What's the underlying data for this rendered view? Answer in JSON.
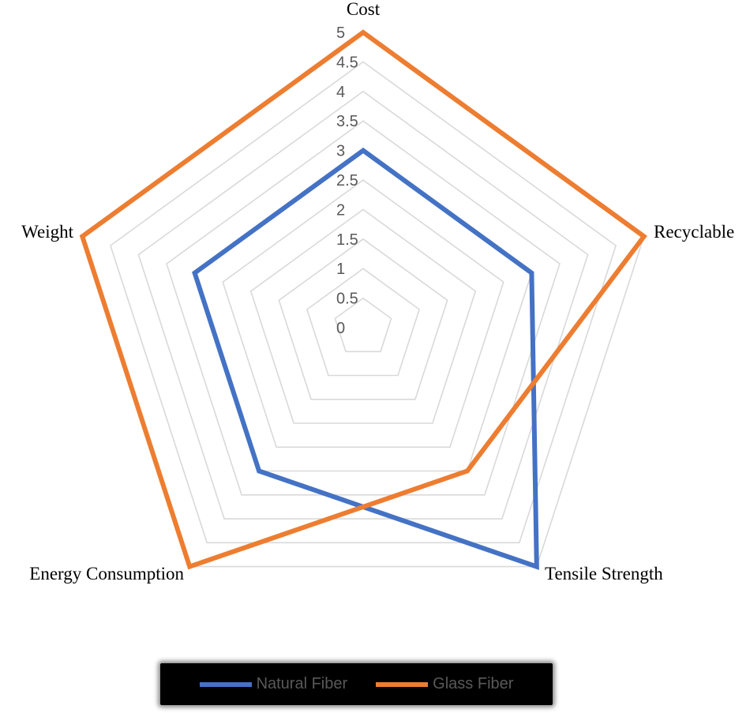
{
  "chart_data": {
    "type": "radar",
    "categories": [
      "Cost",
      "Recyclable",
      "Tensile Strength",
      "Energy Consumption",
      "Weight"
    ],
    "series": [
      {
        "name": "Natural Fiber",
        "values": [
          3,
          3,
          5,
          3,
          3
        ],
        "color": "#4472c4"
      },
      {
        "name": "Glass Fiber",
        "values": [
          5,
          5,
          3,
          5,
          5
        ],
        "color": "#ed7d31"
      }
    ],
    "r_ticks": [
      "0",
      "0.5",
      "1",
      "1.5",
      "2",
      "2.5",
      "3",
      "3.5",
      "4",
      "4.5",
      "5"
    ],
    "r_range": [
      0,
      5
    ],
    "grid": true,
    "legend_position": "bottom"
  }
}
